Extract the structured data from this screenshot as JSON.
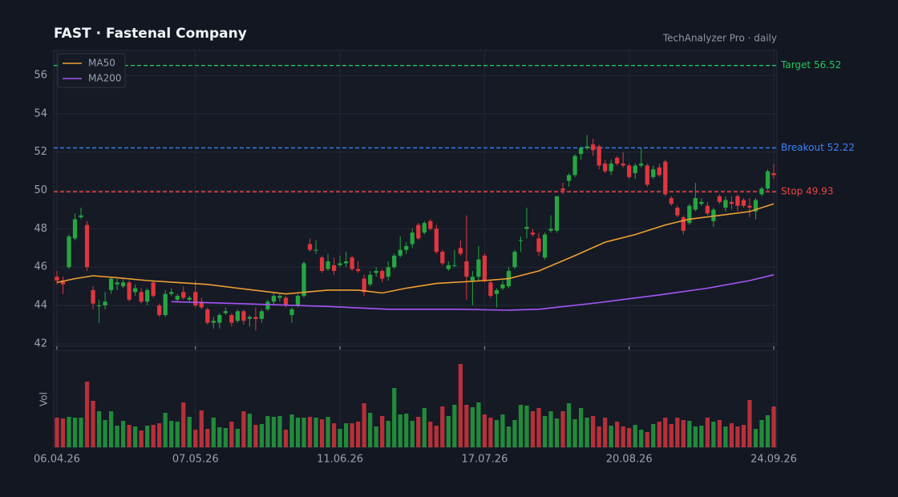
{
  "chart_data": {
    "type": "candlestick",
    "title": "FAST  ·  Fastenal Company",
    "subtitle": "TechAnalyzer Pro · daily",
    "volume_label": "Vol",
    "xlim": [
      -0.53,
      119.53
    ],
    "xticks": [
      {
        "value": 0,
        "label": "06.04.26"
      },
      {
        "value": 23,
        "label": "07.05.26"
      },
      {
        "value": 47,
        "label": "11.06.26"
      },
      {
        "value": 71,
        "label": "17.07.26"
      },
      {
        "value": 95,
        "label": "20.08.26"
      },
      {
        "value": 119,
        "label": "24.09.26"
      }
    ],
    "ylim": [
      41.87,
      57.3
    ],
    "yticks": [
      42,
      44,
      46,
      48,
      50,
      52,
      54,
      56
    ],
    "grid": true,
    "up_color": "#26a641",
    "down_color": "#e0363f",
    "ohlc": [
      [
        45.5,
        45.8,
        45.1,
        45.3
      ],
      [
        45.3,
        45.5,
        44.6,
        45.1
      ],
      [
        46.0,
        47.7,
        45.9,
        47.6
      ],
      [
        47.5,
        48.8,
        47.4,
        48.5
      ],
      [
        48.6,
        49.1,
        48.5,
        48.7
      ],
      [
        48.2,
        48.4,
        45.8,
        46.0
      ],
      [
        44.8,
        45.0,
        43.8,
        44.1
      ],
      [
        44.0,
        44.3,
        43.1,
        44.0
      ],
      [
        44.0,
        44.7,
        43.8,
        44.2
      ],
      [
        44.8,
        45.5,
        44.6,
        45.4
      ],
      [
        45.1,
        45.4,
        44.8,
        45.2
      ],
      [
        45.0,
        45.4,
        44.9,
        45.2
      ],
      [
        45.2,
        45.3,
        44.2,
        44.3
      ],
      [
        44.7,
        45.1,
        44.5,
        44.9
      ],
      [
        44.7,
        44.9,
        44.1,
        44.2
      ],
      [
        44.2,
        44.9,
        44.0,
        44.8
      ],
      [
        45.2,
        45.3,
        44.4,
        44.5
      ],
      [
        44.0,
        44.1,
        43.4,
        43.5
      ],
      [
        43.5,
        44.8,
        43.4,
        44.6
      ],
      [
        44.6,
        44.9,
        44.5,
        44.7
      ],
      [
        44.3,
        44.6,
        44.2,
        44.5
      ],
      [
        44.7,
        45.0,
        44.3,
        44.4
      ],
      [
        44.3,
        44.5,
        44.2,
        44.4
      ],
      [
        44.7,
        45.3,
        43.9,
        44.0
      ],
      [
        44.2,
        44.4,
        43.8,
        43.9
      ],
      [
        43.8,
        43.9,
        43.0,
        43.1
      ],
      [
        43.1,
        43.4,
        42.8,
        43.2
      ],
      [
        43.1,
        43.6,
        42.8,
        43.5
      ],
      [
        43.6,
        43.9,
        43.5,
        43.7
      ],
      [
        43.5,
        43.6,
        42.9,
        43.1
      ],
      [
        43.2,
        43.8,
        43.1,
        43.7
      ],
      [
        43.7,
        43.8,
        43.0,
        43.2
      ],
      [
        43.3,
        43.5,
        42.9,
        43.4
      ],
      [
        43.4,
        43.9,
        42.7,
        43.3
      ],
      [
        43.3,
        43.8,
        43.1,
        43.7
      ],
      [
        43.8,
        44.3,
        43.7,
        44.2
      ],
      [
        44.2,
        44.7,
        44.0,
        44.5
      ],
      [
        44.4,
        44.6,
        44.2,
        44.5
      ],
      [
        44.4,
        44.5,
        43.9,
        44.0
      ],
      [
        43.5,
        43.9,
        43.1,
        43.8
      ],
      [
        44.0,
        44.6,
        43.9,
        44.5
      ],
      [
        44.5,
        46.3,
        44.4,
        46.2
      ],
      [
        47.2,
        47.5,
        46.8,
        46.9
      ],
      [
        46.9,
        47.4,
        46.7,
        46.9
      ],
      [
        46.5,
        46.6,
        45.7,
        45.8
      ],
      [
        45.9,
        46.7,
        45.8,
        46.3
      ],
      [
        46.1,
        46.5,
        45.6,
        45.8
      ],
      [
        46.1,
        46.6,
        46.0,
        46.2
      ],
      [
        46.2,
        46.8,
        46.0,
        46.3
      ],
      [
        46.5,
        46.6,
        45.8,
        45.9
      ],
      [
        45.9,
        46.3,
        45.7,
        45.8
      ],
      [
        45.4,
        45.6,
        44.5,
        44.7
      ],
      [
        45.1,
        45.8,
        45.0,
        45.6
      ],
      [
        45.7,
        46.0,
        45.5,
        45.8
      ],
      [
        45.8,
        45.9,
        45.2,
        45.4
      ],
      [
        45.5,
        46.3,
        45.3,
        46.0
      ],
      [
        46.0,
        46.7,
        45.9,
        46.6
      ],
      [
        46.6,
        47.6,
        46.5,
        46.9
      ],
      [
        46.9,
        47.3,
        46.7,
        47.1
      ],
      [
        47.2,
        48.0,
        47.0,
        47.8
      ],
      [
        48.2,
        48.3,
        47.4,
        47.5
      ],
      [
        47.8,
        48.4,
        47.7,
        48.3
      ],
      [
        48.4,
        48.5,
        47.9,
        48.0
      ],
      [
        48.0,
        48.2,
        46.7,
        46.8
      ],
      [
        46.8,
        46.9,
        46.1,
        46.2
      ],
      [
        45.9,
        46.3,
        45.8,
        46.1
      ],
      [
        46.1,
        46.9,
        46.0,
        46.1
      ],
      [
        47.0,
        47.4,
        46.6,
        46.7
      ],
      [
        46.3,
        48.7,
        44.3,
        45.5
      ],
      [
        45.3,
        45.8,
        44.0,
        45.5
      ],
      [
        45.5,
        47.1,
        45.3,
        46.4
      ],
      [
        46.6,
        46.7,
        45.2,
        45.3
      ],
      [
        45.2,
        45.3,
        44.4,
        44.5
      ],
      [
        44.6,
        44.9,
        43.9,
        44.8
      ],
      [
        44.9,
        45.3,
        44.8,
        45.1
      ],
      [
        45.0,
        46.0,
        44.9,
        45.8
      ],
      [
        46.0,
        46.9,
        45.9,
        46.8
      ],
      [
        47.4,
        47.6,
        46.8,
        47.4
      ],
      [
        48.0,
        49.1,
        47.5,
        48.1
      ],
      [
        47.8,
        48.0,
        47.6,
        47.7
      ],
      [
        47.5,
        47.8,
        46.6,
        46.8
      ],
      [
        46.5,
        47.8,
        46.4,
        47.7
      ],
      [
        47.9,
        48.7,
        47.8,
        48.0
      ],
      [
        47.9,
        49.7,
        47.8,
        49.7
      ],
      [
        50.1,
        50.4,
        49.8,
        50.0
      ],
      [
        50.5,
        50.9,
        50.2,
        50.8
      ],
      [
        50.8,
        51.9,
        50.7,
        51.8
      ],
      [
        51.9,
        52.3,
        51.6,
        52.2
      ],
      [
        52.2,
        52.9,
        52.1,
        52.3
      ],
      [
        52.4,
        52.7,
        51.8,
        52.1
      ],
      [
        52.3,
        52.4,
        51.1,
        51.3
      ],
      [
        51.4,
        51.6,
        50.9,
        51.0
      ],
      [
        51.0,
        51.6,
        50.8,
        51.4
      ],
      [
        51.7,
        51.8,
        51.3,
        51.4
      ],
      [
        51.4,
        52.0,
        51.2,
        51.3
      ],
      [
        51.3,
        51.4,
        50.6,
        50.7
      ],
      [
        50.9,
        51.4,
        50.6,
        51.3
      ],
      [
        51.3,
        52.2,
        51.2,
        51.4
      ],
      [
        51.3,
        51.4,
        50.2,
        50.3
      ],
      [
        50.7,
        51.3,
        50.6,
        51.1
      ],
      [
        51.2,
        51.4,
        50.7,
        50.8
      ],
      [
        51.5,
        51.6,
        49.7,
        49.8
      ],
      [
        49.6,
        49.7,
        49.2,
        49.3
      ],
      [
        49.1,
        49.2,
        48.6,
        48.7
      ],
      [
        48.6,
        48.7,
        47.7,
        47.9
      ],
      [
        48.3,
        49.3,
        48.2,
        49.2
      ],
      [
        49.0,
        50.4,
        48.9,
        49.6
      ],
      [
        49.3,
        49.6,
        49.2,
        49.4
      ],
      [
        49.2,
        49.4,
        48.7,
        48.8
      ],
      [
        48.4,
        49.1,
        48.1,
        49.0
      ],
      [
        49.7,
        49.8,
        49.3,
        49.4
      ],
      [
        49.1,
        49.7,
        48.9,
        49.5
      ],
      [
        49.4,
        49.7,
        49.0,
        49.3
      ],
      [
        49.7,
        49.8,
        48.9,
        49.2
      ],
      [
        49.5,
        49.6,
        49.1,
        49.2
      ],
      [
        49.2,
        49.6,
        48.6,
        49.1
      ],
      [
        48.9,
        49.6,
        48.5,
        49.5
      ],
      [
        49.8,
        50.2,
        49.7,
        50.1
      ],
      [
        50.1,
        51.1,
        50.0,
        51.0
      ],
      [
        50.9,
        51.4,
        50.6,
        50.8
      ]
    ],
    "volume": [
      37,
      36,
      38,
      37,
      37,
      82,
      58,
      45,
      34,
      45,
      27,
      33,
      28,
      26,
      21,
      27,
      28,
      30,
      43,
      33,
      32,
      56,
      38,
      22,
      46,
      23,
      37,
      25,
      24,
      32,
      23,
      45,
      42,
      28,
      29,
      39,
      38,
      39,
      22,
      41,
      37,
      37,
      38,
      37,
      35,
      38,
      30,
      23,
      30,
      30,
      32,
      55,
      43,
      26,
      39,
      33,
      74,
      41,
      42,
      33,
      38,
      49,
      32,
      27,
      51,
      39,
      53,
      104,
      53,
      50,
      56,
      41,
      37,
      34,
      41,
      26,
      34,
      53,
      52,
      45,
      49,
      39,
      45,
      36,
      45,
      55,
      35,
      49,
      37,
      39,
      26,
      37,
      27,
      32,
      26,
      24,
      28,
      22,
      19,
      29,
      32,
      37,
      29,
      37,
      34,
      33,
      26,
      27,
      37,
      32,
      34,
      26,
      30,
      26,
      28,
      59,
      23,
      34,
      40,
      51
    ],
    "volume_ylim": [
      0,
      118
    ],
    "series": [
      {
        "name": "MA50",
        "color": "#f0a030",
        "x": [
          0,
          3,
          6,
          10,
          15,
          20,
          25,
          30,
          38,
          45,
          50,
          54,
          58,
          63,
          71,
          75,
          80,
          86,
          91,
          96,
          101,
          105,
          110,
          115,
          119
        ],
        "values": [
          45.2,
          45.4,
          45.55,
          45.45,
          45.3,
          45.2,
          45.1,
          44.9,
          44.6,
          44.8,
          44.8,
          44.65,
          44.9,
          45.15,
          45.3,
          45.4,
          45.8,
          46.6,
          47.3,
          47.7,
          48.2,
          48.5,
          48.7,
          48.9,
          49.3
        ]
      },
      {
        "name": "MA200",
        "color": "#a855f7",
        "x": [
          19,
          30,
          45,
          55,
          67,
          75,
          80,
          90,
          100,
          108,
          115,
          119
        ],
        "values": [
          44.2,
          44.1,
          43.95,
          43.8,
          43.8,
          43.75,
          43.8,
          44.15,
          44.55,
          44.9,
          45.3,
          45.6
        ]
      }
    ],
    "levels": [
      {
        "value": 56.52,
        "label": "Target 56.52",
        "color": "#22c55e"
      },
      {
        "value": 52.22,
        "label": "Breakout 52.22",
        "color": "#3b82f6"
      },
      {
        "value": 49.93,
        "label": "Stop 49.93",
        "color": "#ef4444"
      }
    ],
    "legend": "upper left"
  }
}
